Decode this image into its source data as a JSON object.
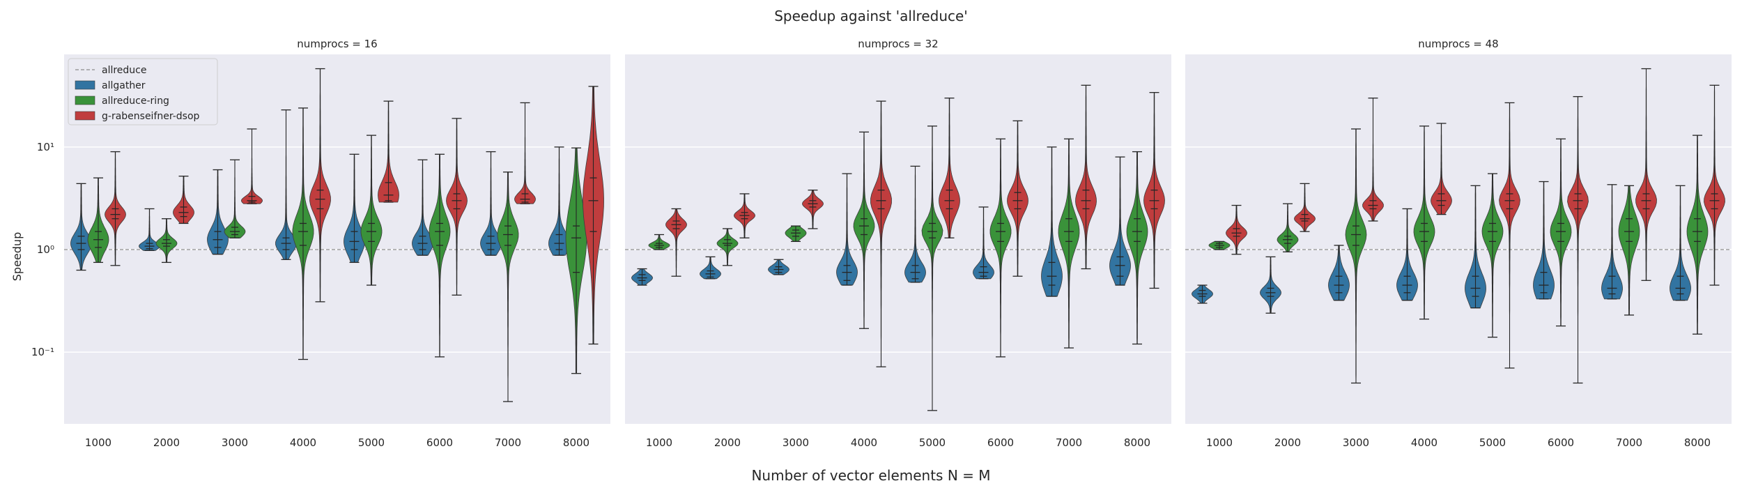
{
  "suptitle": "Speedup against 'allreduce'",
  "xlabel": "Number of vector elements N = M",
  "ylabel": "Speedup",
  "ytick_labels": [
    {
      "value": 0.1,
      "label": "10⁻¹"
    },
    {
      "value": 1,
      "label": "10⁰"
    },
    {
      "value": 10,
      "label": "10¹"
    }
  ],
  "legend": {
    "placement": "top-left",
    "entries": [
      {
        "name": "allreduce",
        "kind": "line"
      },
      {
        "name": "allgather",
        "kind": "patch"
      },
      {
        "name": "allreduce-ring",
        "kind": "patch"
      },
      {
        "name": "g-rabenseifner-dsop",
        "kind": "patch"
      }
    ]
  },
  "colors": {
    "allgather": "#3274a1",
    "allreduce-ring": "#3a923a",
    "g-rabenseifner-dsop": "#c03d3e",
    "panel_bg": "#eaeaf2",
    "grid": "#ffffff",
    "reference": "#8c8c8c"
  },
  "chart_data": {
    "type": "violin",
    "yscale": "log",
    "ylim": [
      0.02,
      80
    ],
    "grid": true,
    "reference_line": {
      "name": "allreduce",
      "value": 1
    },
    "categories": [
      "1000",
      "2000",
      "3000",
      "4000",
      "5000",
      "6000",
      "7000",
      "8000"
    ],
    "series_names": [
      "allgather",
      "allreduce-ring",
      "g-rabenseifner-dsop"
    ],
    "panels": [
      {
        "title": "numprocs = 16",
        "series": [
          {
            "name": "allgather",
            "violins": [
              {
                "min": 0.63,
                "q1": 1.0,
                "median": 1.15,
                "q3": 1.35,
                "max": 4.4
              },
              {
                "min": 0.98,
                "q1": 1.02,
                "median": 1.08,
                "q3": 1.15,
                "max": 2.5
              },
              {
                "min": 0.9,
                "q1": 1.05,
                "median": 1.25,
                "q3": 1.5,
                "max": 6.0
              },
              {
                "min": 0.8,
                "q1": 1.0,
                "median": 1.15,
                "q3": 1.3,
                "max": 23
              },
              {
                "min": 0.75,
                "q1": 1.0,
                "median": 1.2,
                "q3": 1.5,
                "max": 8.5
              },
              {
                "min": 0.88,
                "q1": 1.0,
                "median": 1.15,
                "q3": 1.35,
                "max": 7.5
              },
              {
                "min": 0.88,
                "q1": 1.0,
                "median": 1.15,
                "q3": 1.35,
                "max": 9.0
              },
              {
                "min": 0.88,
                "q1": 1.0,
                "median": 1.15,
                "q3": 1.4,
                "max": 10
              }
            ]
          },
          {
            "name": "allreduce-ring",
            "violins": [
              {
                "min": 0.75,
                "q1": 1.05,
                "median": 1.25,
                "q3": 1.5,
                "max": 5.0
              },
              {
                "min": 0.75,
                "q1": 1.08,
                "median": 1.15,
                "q3": 1.25,
                "max": 2.0
              },
              {
                "min": 1.3,
                "q1": 1.4,
                "median": 1.5,
                "q3": 1.65,
                "max": 7.5
              },
              {
                "min": 0.085,
                "q1": 1.1,
                "median": 1.5,
                "q3": 1.8,
                "max": 24
              },
              {
                "min": 0.45,
                "q1": 1.2,
                "median": 1.5,
                "q3": 1.8,
                "max": 13
              },
              {
                "min": 0.09,
                "q1": 1.1,
                "median": 1.5,
                "q3": 1.8,
                "max": 8.5
              },
              {
                "min": 0.033,
                "q1": 1.1,
                "median": 1.4,
                "q3": 1.7,
                "max": 5.7
              },
              {
                "min": 0.062,
                "q1": 0.6,
                "median": 1.3,
                "q3": 1.7,
                "max": 9.8
              }
            ]
          },
          {
            "name": "g-rabenseifner-dsop",
            "violins": [
              {
                "min": 0.7,
                "q1": 2.0,
                "median": 2.2,
                "q3": 2.5,
                "max": 9.0
              },
              {
                "min": 1.8,
                "q1": 2.1,
                "median": 2.3,
                "q3": 2.6,
                "max": 5.2
              },
              {
                "min": 2.8,
                "q1": 2.9,
                "median": 3.0,
                "q3": 3.3,
                "max": 15
              },
              {
                "min": 0.31,
                "q1": 2.5,
                "median": 3.1,
                "q3": 3.8,
                "max": 58
              },
              {
                "min": 2.9,
                "q1": 3.0,
                "median": 3.4,
                "q3": 4.5,
                "max": 28
              },
              {
                "min": 0.36,
                "q1": 2.5,
                "median": 3.0,
                "q3": 3.5,
                "max": 19
              },
              {
                "min": 2.8,
                "q1": 2.9,
                "median": 3.1,
                "q3": 3.5,
                "max": 27
              },
              {
                "min": 0.12,
                "q1": 1.5,
                "median": 3.0,
                "q3": 5.0,
                "max": 39
              }
            ]
          }
        ]
      },
      {
        "title": "numprocs = 32",
        "series": [
          {
            "name": "allgather",
            "violins": [
              {
                "min": 0.45,
                "q1": 0.5,
                "median": 0.53,
                "q3": 0.57,
                "max": 0.65
              },
              {
                "min": 0.52,
                "q1": 0.54,
                "median": 0.58,
                "q3": 0.62,
                "max": 0.85
              },
              {
                "min": 0.57,
                "q1": 0.6,
                "median": 0.64,
                "q3": 0.68,
                "max": 0.8
              },
              {
                "min": 0.45,
                "q1": 0.5,
                "median": 0.6,
                "q3": 0.7,
                "max": 5.5
              },
              {
                "min": 0.48,
                "q1": 0.52,
                "median": 0.6,
                "q3": 0.7,
                "max": 6.5
              },
              {
                "min": 0.52,
                "q1": 0.55,
                "median": 0.6,
                "q3": 0.68,
                "max": 2.6
              },
              {
                "min": 0.35,
                "q1": 0.45,
                "median": 0.55,
                "q3": 0.75,
                "max": 10
              },
              {
                "min": 0.45,
                "q1": 0.55,
                "median": 0.7,
                "q3": 0.85,
                "max": 8.0
              }
            ]
          },
          {
            "name": "allreduce-ring",
            "violins": [
              {
                "min": 1.0,
                "q1": 1.05,
                "median": 1.1,
                "q3": 1.15,
                "max": 1.4
              },
              {
                "min": 0.7,
                "q1": 1.1,
                "median": 1.15,
                "q3": 1.25,
                "max": 1.6
              },
              {
                "min": 1.2,
                "q1": 1.35,
                "median": 1.45,
                "q3": 1.55,
                "max": 1.7
              },
              {
                "min": 0.17,
                "q1": 1.4,
                "median": 1.7,
                "q3": 2.0,
                "max": 14
              },
              {
                "min": 0.027,
                "q1": 1.3,
                "median": 1.5,
                "q3": 1.8,
                "max": 16
              },
              {
                "min": 0.09,
                "q1": 1.2,
                "median": 1.5,
                "q3": 1.8,
                "max": 12
              },
              {
                "min": 0.11,
                "q1": 1.2,
                "median": 1.5,
                "q3": 2.0,
                "max": 12
              },
              {
                "min": 0.12,
                "q1": 1.2,
                "median": 1.5,
                "q3": 2.0,
                "max": 9.0
              }
            ]
          },
          {
            "name": "g-rabenseifner-dsop",
            "violins": [
              {
                "min": 0.55,
                "q1": 1.6,
                "median": 1.75,
                "q3": 1.9,
                "max": 2.5
              },
              {
                "min": 1.3,
                "q1": 2.0,
                "median": 2.15,
                "q3": 2.3,
                "max": 3.5
              },
              {
                "min": 1.6,
                "q1": 2.6,
                "median": 2.8,
                "q3": 3.0,
                "max": 3.8
              },
              {
                "min": 0.072,
                "q1": 2.5,
                "median": 3.0,
                "q3": 3.8,
                "max": 28
              },
              {
                "min": 1.3,
                "q1": 2.5,
                "median": 3.0,
                "q3": 3.8,
                "max": 30
              },
              {
                "min": 0.55,
                "q1": 2.5,
                "median": 3.0,
                "q3": 3.6,
                "max": 18
              },
              {
                "min": 0.65,
                "q1": 2.5,
                "median": 3.0,
                "q3": 3.8,
                "max": 40
              },
              {
                "min": 0.42,
                "q1": 2.5,
                "median": 3.0,
                "q3": 3.8,
                "max": 34
              }
            ]
          }
        ]
      },
      {
        "title": "numprocs = 48",
        "series": [
          {
            "name": "allgather",
            "violins": [
              {
                "min": 0.3,
                "q1": 0.35,
                "median": 0.37,
                "q3": 0.4,
                "max": 0.45
              },
              {
                "min": 0.24,
                "q1": 0.35,
                "median": 0.38,
                "q3": 0.42,
                "max": 0.85
              },
              {
                "min": 0.32,
                "q1": 0.38,
                "median": 0.45,
                "q3": 0.55,
                "max": 1.1
              },
              {
                "min": 0.32,
                "q1": 0.38,
                "median": 0.45,
                "q3": 0.55,
                "max": 2.5
              },
              {
                "min": 0.27,
                "q1": 0.35,
                "median": 0.42,
                "q3": 0.55,
                "max": 4.2
              },
              {
                "min": 0.33,
                "q1": 0.38,
                "median": 0.45,
                "q3": 0.6,
                "max": 4.6
              },
              {
                "min": 0.33,
                "q1": 0.37,
                "median": 0.42,
                "q3": 0.55,
                "max": 4.3
              },
              {
                "min": 0.32,
                "q1": 0.37,
                "median": 0.42,
                "q3": 0.55,
                "max": 4.2
              }
            ]
          },
          {
            "name": "allreduce-ring",
            "violins": [
              {
                "min": 1.0,
                "q1": 1.05,
                "median": 1.1,
                "q3": 1.15,
                "max": 1.2
              },
              {
                "min": 0.95,
                "q1": 1.15,
                "median": 1.25,
                "q3": 1.35,
                "max": 2.8
              },
              {
                "min": 0.05,
                "q1": 1.1,
                "median": 1.4,
                "q3": 1.7,
                "max": 15
              },
              {
                "min": 0.21,
                "q1": 1.2,
                "median": 1.5,
                "q3": 1.8,
                "max": 16
              },
              {
                "min": 0.14,
                "q1": 1.2,
                "median": 1.5,
                "q3": 1.8,
                "max": 5.5
              },
              {
                "min": 0.18,
                "q1": 1.2,
                "median": 1.5,
                "q3": 1.8,
                "max": 12
              },
              {
                "min": 0.23,
                "q1": 1.2,
                "median": 1.5,
                "q3": 2.0,
                "max": 4.2
              },
              {
                "min": 0.15,
                "q1": 1.2,
                "median": 1.5,
                "q3": 2.0,
                "max": 13
              }
            ]
          },
          {
            "name": "g-rabenseifner-dsop",
            "violins": [
              {
                "min": 0.9,
                "q1": 1.35,
                "median": 1.45,
                "q3": 1.6,
                "max": 2.7
              },
              {
                "min": 1.5,
                "q1": 1.9,
                "median": 2.0,
                "q3": 2.2,
                "max": 4.4
              },
              {
                "min": 1.9,
                "q1": 2.5,
                "median": 2.7,
                "q3": 3.0,
                "max": 30
              },
              {
                "min": 2.2,
                "q1": 2.7,
                "median": 3.0,
                "q3": 3.5,
                "max": 17
              },
              {
                "min": 0.07,
                "q1": 2.5,
                "median": 3.0,
                "q3": 3.5,
                "max": 27
              },
              {
                "min": 0.05,
                "q1": 2.5,
                "median": 3.0,
                "q3": 3.5,
                "max": 31
              },
              {
                "min": 0.5,
                "q1": 2.5,
                "median": 3.0,
                "q3": 3.5,
                "max": 58
              },
              {
                "min": 0.45,
                "q1": 2.5,
                "median": 3.0,
                "q3": 3.5,
                "max": 40
              }
            ]
          }
        ]
      }
    ]
  }
}
